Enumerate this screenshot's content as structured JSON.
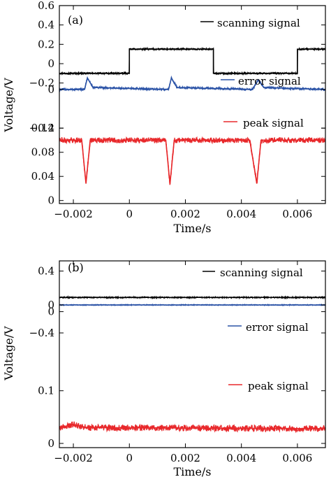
{
  "chart_data": [
    {
      "type": "line",
      "panel_label": "(a)",
      "xlabel": "Time/s",
      "ylabel": "Voltage/V",
      "xlim": [
        -0.0025,
        0.007
      ],
      "x_ticks": [
        -0.002,
        0,
        0.002,
        0.004,
        0.006
      ],
      "x_tick_labels": [
        "−0.002",
        "0",
        "0.002",
        "0.004",
        "0.006"
      ],
      "series": [
        {
          "name": "scanning signal",
          "color": "#000000",
          "axis_ticks": [
            0.6,
            0.4,
            0.2,
            0,
            -0.2
          ],
          "axis_tick_labels": [
            "0.6",
            "0.4",
            "0.2",
            "0",
            "−0.2"
          ],
          "ylim": [
            -0.26,
            0.6
          ],
          "points": [
            [
              -0.0025,
              -0.1
            ],
            [
              0.0,
              -0.1
            ],
            [
              0.0,
              0.15
            ],
            [
              0.003,
              0.15
            ],
            [
              0.003,
              -0.1
            ],
            [
              0.006,
              -0.1
            ],
            [
              0.006,
              0.15
            ],
            [
              0.007,
              0.15
            ]
          ]
        },
        {
          "name": "error signal",
          "color": "#2a52a6",
          "axis_ticks": [
            -0.4,
            0
          ],
          "axis_tick_labels": [
            "−0.4",
            "0"
          ],
          "ylim": [
            -0.58,
            0.26
          ],
          "points": [
            [
              -0.0025,
              0.0
            ],
            [
              -0.0016,
              0.0
            ],
            [
              -0.0015,
              0.12
            ],
            [
              -0.0013,
              0.02
            ],
            [
              0.0014,
              0.0
            ],
            [
              0.0015,
              0.12
            ],
            [
              0.0017,
              0.02
            ],
            [
              0.0044,
              0.0
            ],
            [
              0.0046,
              0.1
            ],
            [
              0.0048,
              0.02
            ],
            [
              0.007,
              0.0
            ]
          ]
        },
        {
          "name": "peak signal",
          "color": "#e8282b",
          "axis_ticks": [
            0.12,
            0.08,
            0.04,
            0
          ],
          "axis_tick_labels": [
            "0.12",
            "0.08",
            "0.04",
            "0"
          ],
          "ylim": [
            -0.005,
            0.14
          ],
          "points": [
            [
              -0.0025,
              0.1
            ],
            [
              -0.0017,
              0.1
            ],
            [
              -0.00155,
              0.028
            ],
            [
              -0.0014,
              0.1
            ],
            [
              0.0013,
              0.1
            ],
            [
              0.00145,
              0.027
            ],
            [
              0.0016,
              0.1
            ],
            [
              0.0043,
              0.1
            ],
            [
              0.00455,
              0.028
            ],
            [
              0.0047,
              0.1
            ],
            [
              0.007,
              0.1
            ]
          ]
        }
      ]
    },
    {
      "type": "line",
      "panel_label": "(b)",
      "xlabel": "Time/s",
      "ylabel": "Voltage/V",
      "xlim": [
        -0.0025,
        0.007
      ],
      "x_ticks": [
        -0.002,
        0,
        0.002,
        0.004,
        0.006
      ],
      "x_tick_labels": [
        "−0.002",
        "0",
        "0.002",
        "0.004",
        "0.006"
      ],
      "series": [
        {
          "name": "scanning signal",
          "color": "#000000",
          "axis_ticks": [
            0.4,
            0
          ],
          "axis_tick_labels": [
            "0.4",
            "0"
          ],
          "ylim": [
            -0.12,
            0.5
          ],
          "points": [
            [
              -0.0025,
              0.14
            ],
            [
              0.007,
              0.14
            ]
          ]
        },
        {
          "name": "error signal",
          "color": "#2a52a6",
          "axis_ticks": [
            -0.4,
            0
          ],
          "axis_tick_labels": [
            "−0.4",
            "0"
          ],
          "ylim": [
            -0.78,
            0.12
          ],
          "points": [
            [
              -0.0025,
              0.0
            ],
            [
              0.007,
              0.0
            ]
          ]
        },
        {
          "name": "peak signal",
          "color": "#e8282b",
          "axis_ticks": [
            0.1,
            0
          ],
          "axis_tick_labels": [
            "0.1",
            "0"
          ],
          "ylim": [
            -0.008,
            0.158
          ],
          "points": [
            [
              -0.0025,
              0.03
            ],
            [
              -0.002,
              0.036
            ],
            [
              -0.0015,
              0.03
            ],
            [
              0.007,
              0.028
            ]
          ]
        }
      ]
    }
  ]
}
